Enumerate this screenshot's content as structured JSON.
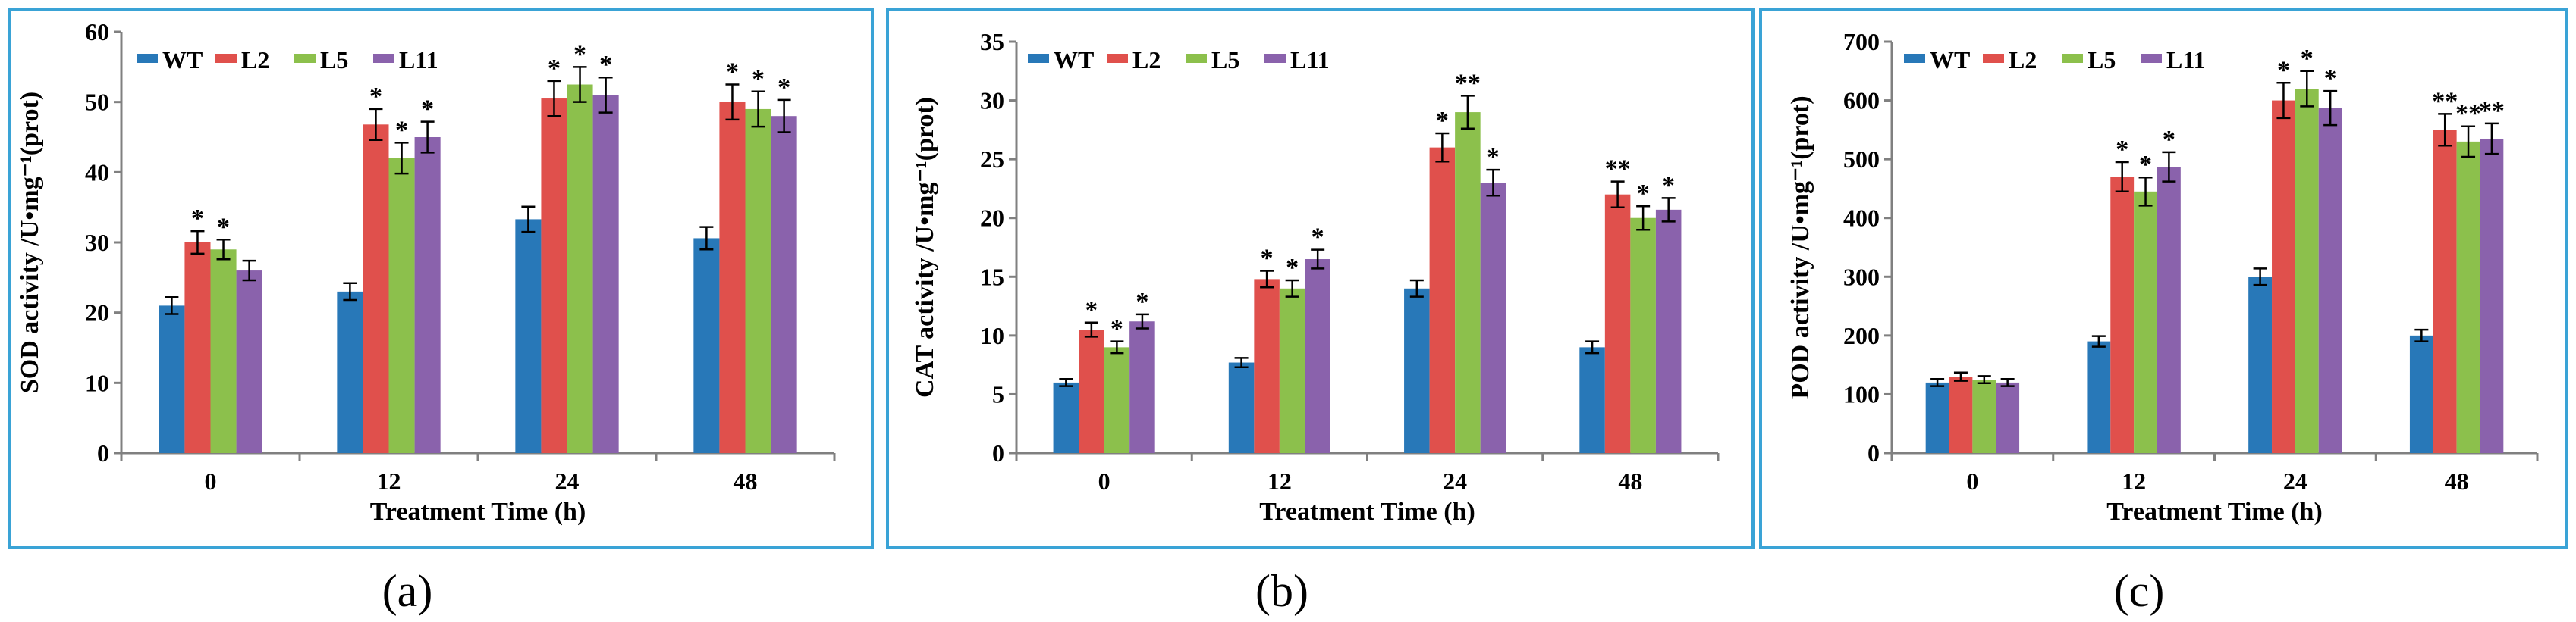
{
  "colors": {
    "frame": "#3aa3d6",
    "axis": "#808080",
    "series": [
      "#2878b8",
      "#e0504c",
      "#8cc04c",
      "#8a62ac"
    ]
  },
  "chart_data": [
    {
      "type": "bar",
      "caption": "(a)",
      "xlabel": "Treatment Time (h)",
      "ylabel": "SOD activity /U•mg⁻¹(prot)",
      "ylim": [
        0,
        60
      ],
      "yticks": [
        "0",
        "10",
        "20",
        "30",
        "40",
        "50",
        "60"
      ],
      "categories": [
        "0",
        "12",
        "24",
        "48"
      ],
      "legend": [
        "WT",
        "L2",
        "L5",
        "L11"
      ],
      "series": [
        {
          "name": "WT",
          "values": [
            21.0,
            23.0,
            33.3,
            30.6
          ],
          "errors": [
            1.2,
            1.2,
            1.8,
            1.6
          ],
          "marks": [
            "",
            "",
            "",
            ""
          ]
        },
        {
          "name": "L2",
          "values": [
            30.0,
            46.8,
            50.5,
            50.0
          ],
          "errors": [
            1.6,
            2.2,
            2.5,
            2.5
          ],
          "marks": [
            "*",
            "*",
            "*",
            "*"
          ]
        },
        {
          "name": "L5",
          "values": [
            29.0,
            42.0,
            52.5,
            49.0
          ],
          "errors": [
            1.4,
            2.2,
            2.5,
            2.5
          ],
          "marks": [
            "*",
            "*",
            "*",
            "*"
          ]
        },
        {
          "name": "L11",
          "values": [
            26.0,
            45.0,
            51.0,
            48.0
          ],
          "errors": [
            1.4,
            2.2,
            2.5,
            2.3
          ],
          "marks": [
            "",
            "*",
            "*",
            "*"
          ]
        }
      ]
    },
    {
      "type": "bar",
      "caption": "(b)",
      "xlabel": "Treatment Time (h)",
      "ylabel": "CAT activity /U•mg⁻¹(prot)",
      "ylim": [
        0,
        35
      ],
      "yticks": [
        "0",
        "5",
        "10",
        "15",
        "20",
        "25",
        "30",
        "35"
      ],
      "categories": [
        "0",
        "12",
        "24",
        "48"
      ],
      "legend": [
        "WT",
        "L2",
        "L5",
        "L11"
      ],
      "series": [
        {
          "name": "WT",
          "values": [
            6.0,
            7.7,
            14.0,
            9.0
          ],
          "errors": [
            0.3,
            0.4,
            0.7,
            0.5
          ],
          "marks": [
            "",
            "",
            "",
            ""
          ]
        },
        {
          "name": "L2",
          "values": [
            10.5,
            14.8,
            26.0,
            22.0
          ],
          "errors": [
            0.6,
            0.7,
            1.2,
            1.1
          ],
          "marks": [
            "*",
            "*",
            "*",
            "**"
          ]
        },
        {
          "name": "L5",
          "values": [
            9.0,
            14.0,
            29.0,
            20.0
          ],
          "errors": [
            0.5,
            0.7,
            1.4,
            1.0
          ],
          "marks": [
            "*",
            "*",
            "**",
            "*"
          ]
        },
        {
          "name": "L11",
          "values": [
            11.2,
            16.5,
            23.0,
            20.7
          ],
          "errors": [
            0.6,
            0.8,
            1.1,
            1.0
          ],
          "marks": [
            "*",
            "*",
            "*",
            "*"
          ]
        }
      ]
    },
    {
      "type": "bar",
      "caption": "(c)",
      "xlabel": "Treatment Time (h)",
      "ylabel": "POD activity /U•mg⁻¹(prot)",
      "ylim": [
        0,
        700
      ],
      "yticks": [
        "0",
        "100",
        "200",
        "300",
        "400",
        "500",
        "600",
        "700"
      ],
      "categories": [
        "0",
        "12",
        "24",
        "48"
      ],
      "legend": [
        "WT",
        "L2",
        "L5",
        "L11"
      ],
      "series": [
        {
          "name": "WT",
          "values": [
            120,
            190,
            300,
            200
          ],
          "errors": [
            6,
            9,
            14,
            10
          ],
          "marks": [
            "",
            "",
            "",
            ""
          ]
        },
        {
          "name": "L2",
          "values": [
            130,
            470,
            600,
            550
          ],
          "errors": [
            7,
            25,
            30,
            27
          ],
          "marks": [
            "",
            "*",
            "*",
            "**"
          ]
        },
        {
          "name": "L5",
          "values": [
            125,
            445,
            620,
            530
          ],
          "errors": [
            6,
            24,
            30,
            26
          ],
          "marks": [
            "",
            "*",
            "*",
            "**"
          ]
        },
        {
          "name": "L11",
          "values": [
            120,
            487,
            587,
            535
          ],
          "errors": [
            6,
            25,
            29,
            26
          ],
          "marks": [
            "",
            "*",
            "*",
            "**"
          ]
        }
      ]
    }
  ]
}
